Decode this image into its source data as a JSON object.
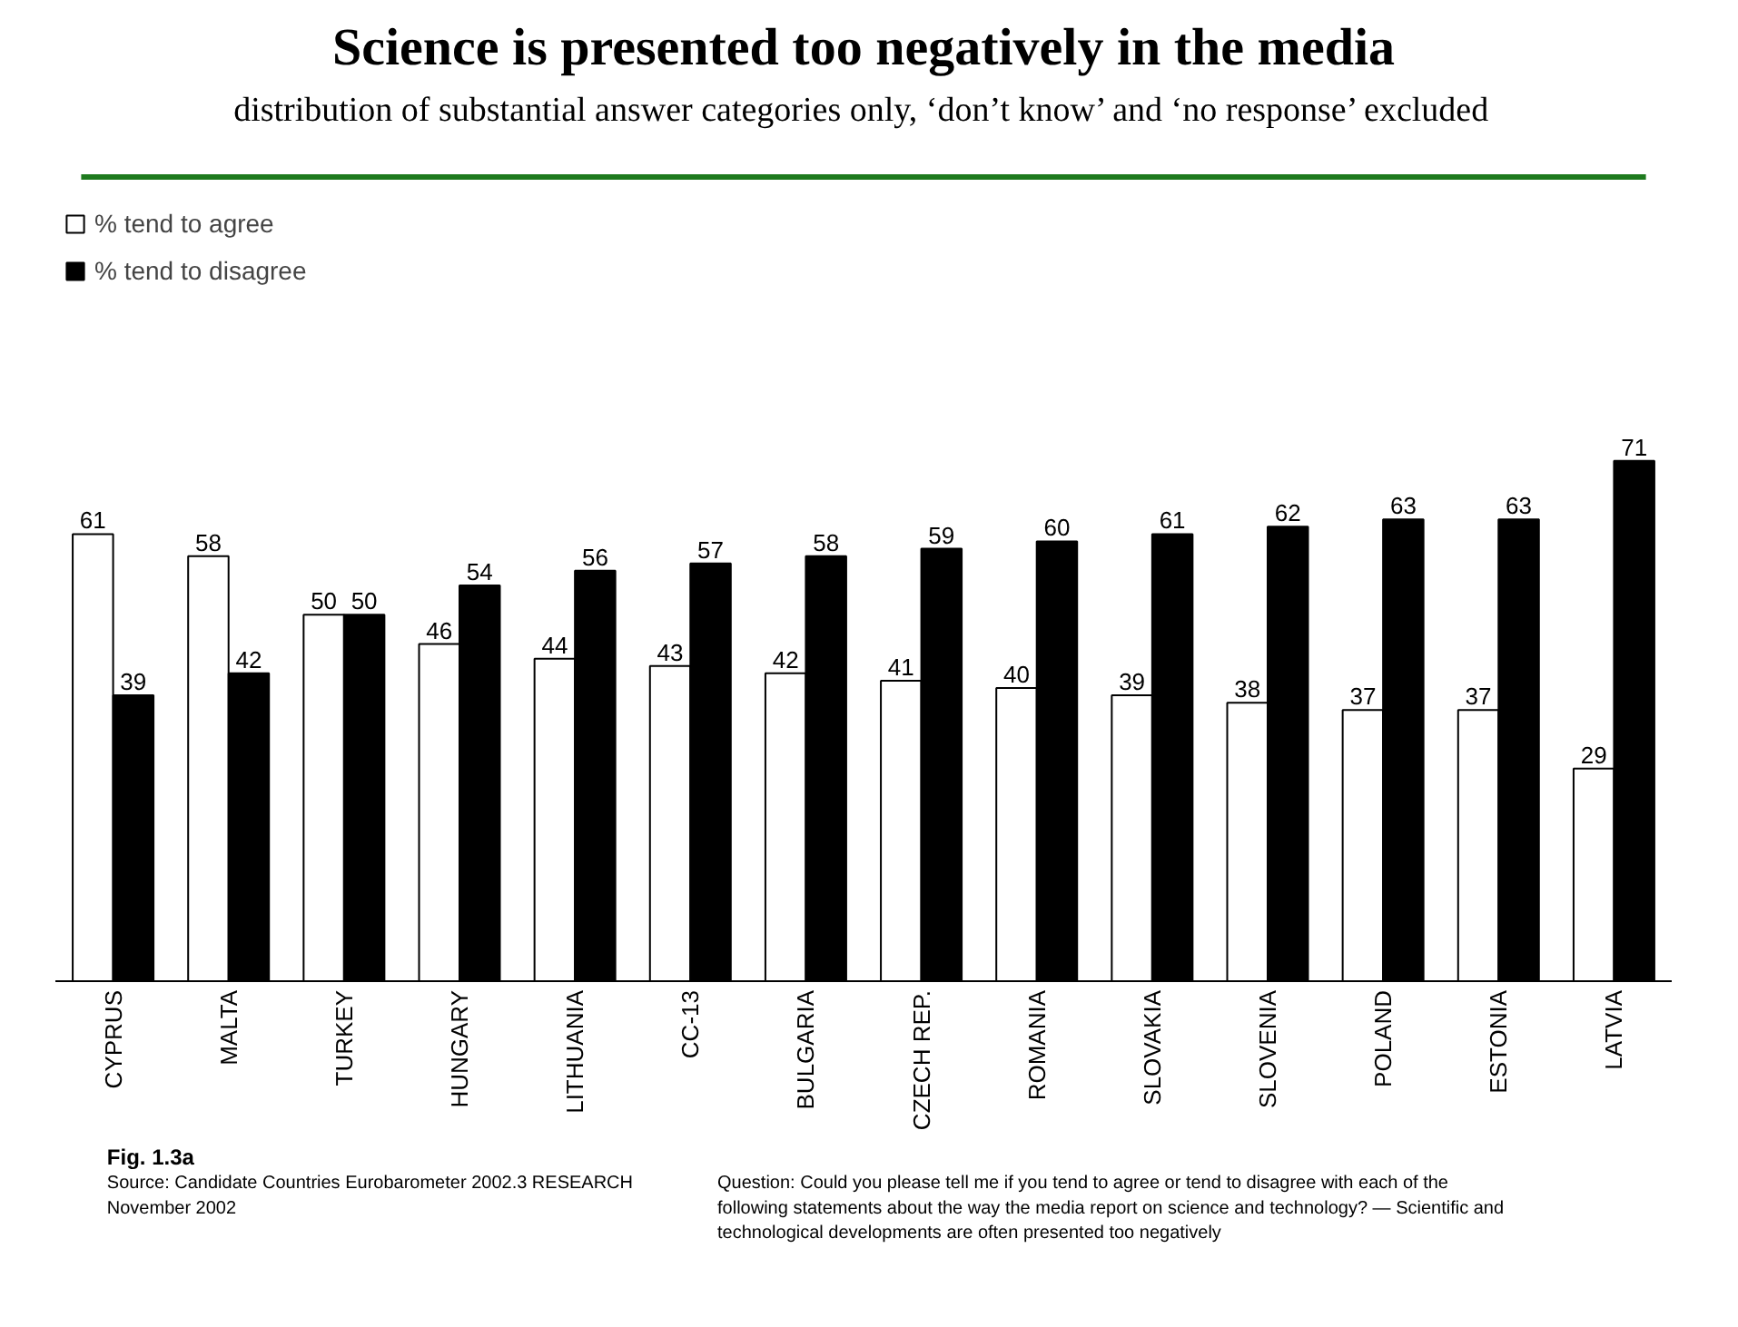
{
  "chart_data": {
    "type": "bar",
    "title": "Science is presented too negatively in the media",
    "subtitle": "distribution of substantial answer categories only, ‘don’t know’ and ‘no response’ excluded",
    "categories": [
      "CYPRUS",
      "MALTA",
      "TURKEY",
      "HUNGARY",
      "LITHUANIA",
      "CC-13",
      "BULGARIA",
      "CZECH REP.",
      "ROMANIA",
      "SLOVAKIA",
      "SLOVENIA",
      "POLAND",
      "ESTONIA",
      "LATVIA"
    ],
    "series": [
      {
        "name": "% tend to agree",
        "color": "#ffffff",
        "values": [
          61,
          58,
          50,
          46,
          44,
          43,
          42,
          41,
          40,
          39,
          38,
          37,
          37,
          29
        ]
      },
      {
        "name": "% tend to disagree",
        "color": "#000000",
        "values": [
          39,
          42,
          50,
          54,
          56,
          57,
          58,
          59,
          60,
          61,
          62,
          63,
          63,
          71
        ]
      }
    ],
    "data_labels": true,
    "legend": "top left",
    "grid": false,
    "tick_labels": "x",
    "annotations": [
      "Fig. 1.3a",
      "Source: Candidate Countries Eurobarometer 2002.3 RESEARCH\nNovember  2002",
      "Question:  Could you please tell me if you tend to agree or tend to disagree with each of the following statements about the way the media report on science and technology? — Scientific and technological developments are often presented too negatively"
    ]
  }
}
